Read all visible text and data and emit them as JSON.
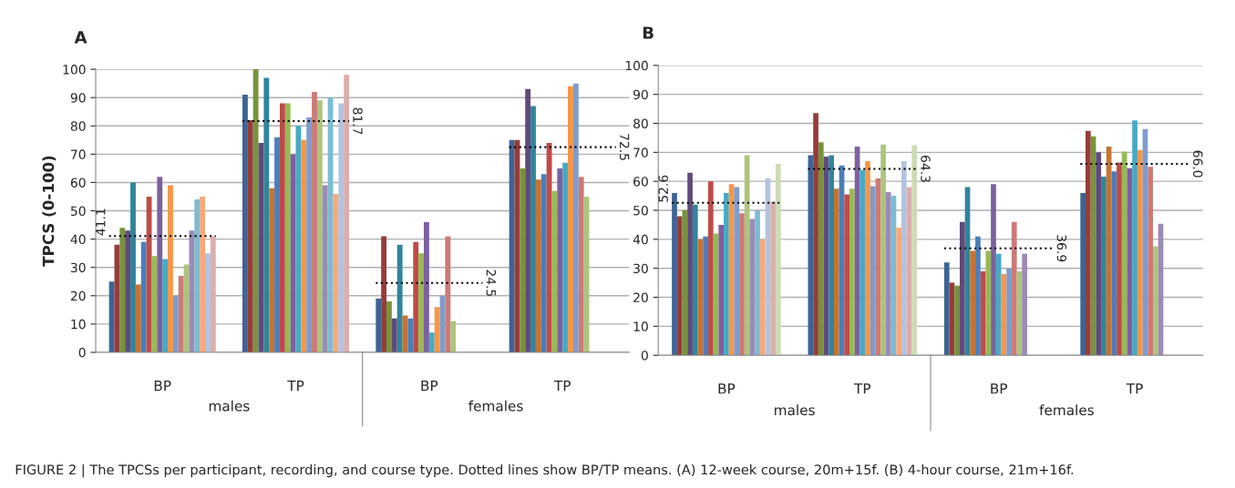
{
  "chart_data": [
    {
      "type": "bar",
      "title": "A",
      "ylabel": "TPCS (0-100)",
      "categories": [
        "BP",
        "TP",
        "BP",
        "TP"
      ],
      "ylim": [
        0,
        100
      ],
      "yticks": [
        0,
        10,
        20,
        30,
        40,
        50,
        60,
        70,
        80,
        90,
        100
      ],
      "grid": "y",
      "legend": false,
      "series": [
        {
          "color": "#3c6494",
          "values": [
            25,
            91,
            19,
            75
          ]
        },
        {
          "color": "#963c3a",
          "values": [
            38,
            82,
            41,
            75
          ]
        },
        {
          "color": "#77933c",
          "values": [
            44,
            100,
            18,
            65
          ]
        },
        {
          "color": "#604a7b",
          "values": [
            43,
            74,
            12,
            93
          ]
        },
        {
          "color": "#31849b",
          "values": [
            60,
            97,
            38,
            87
          ]
        },
        {
          "color": "#c57431",
          "values": [
            24,
            58,
            13,
            61
          ]
        },
        {
          "color": "#4a7ebb",
          "values": [
            39,
            76,
            12,
            63
          ]
        },
        {
          "color": "#be4b48",
          "values": [
            55,
            88,
            39,
            74
          ]
        },
        {
          "color": "#98b954",
          "values": [
            34,
            88,
            35,
            57
          ]
        },
        {
          "color": "#7d60a0",
          "values": [
            62,
            70,
            46,
            65
          ]
        },
        {
          "color": "#46aac5",
          "values": [
            33,
            80,
            7,
            67
          ]
        },
        {
          "color": "#f79646",
          "values": [
            59,
            75,
            16,
            94
          ]
        },
        {
          "color": "#7f9ccc",
          "values": [
            20,
            83,
            20,
            95
          ]
        },
        {
          "color": "#cc7a78",
          "values": [
            27,
            92,
            41,
            62
          ]
        },
        {
          "color": "#adc47d",
          "values": [
            31,
            89,
            11,
            55
          ]
        },
        {
          "color": "#9b8bb5",
          "values": [
            43,
            59,
            null,
            null
          ]
        },
        {
          "color": "#7cbcd2",
          "values": [
            54,
            90,
            null,
            null
          ]
        },
        {
          "color": "#f8a97a",
          "values": [
            55,
            56,
            null,
            null
          ]
        },
        {
          "color": "#b3c3df",
          "values": [
            35,
            88,
            null,
            null
          ]
        },
        {
          "color": "#dbaeae",
          "values": [
            41,
            98,
            null,
            null
          ]
        }
      ],
      "ref_lines": [
        {
          "axis": "y",
          "value": 41.1,
          "label": "41.1",
          "line_style": "dotted",
          "color": "#000000"
        },
        {
          "axis": "y",
          "value": 81.7,
          "label": "81.7",
          "line_style": "dotted",
          "color": "#000000"
        },
        {
          "axis": "y",
          "value": 24.5,
          "label": "24.5",
          "line_style": "dotted",
          "color": "#000000"
        },
        {
          "axis": "y",
          "value": 72.5,
          "label": "72.5",
          "line_style": "dotted",
          "color": "#000000"
        }
      ],
      "annotations": [
        "males",
        "females",
        "FIGURE 2 | The TPCSs per participant, recording, and course type. Dotted lines show BP/TP means. (A) 12-week course, 20m+15f. (B) 4-hour course, 21m+16f."
      ]
    },
    {
      "type": "bar",
      "title": "B",
      "categories": [
        "BP",
        "TP",
        "BP",
        "TP"
      ],
      "ylim": [
        0,
        100
      ],
      "yticks": [
        0,
        10,
        20,
        30,
        40,
        50,
        60,
        70,
        80,
        90,
        100
      ],
      "grid": "y",
      "legend": false,
      "series": [
        {
          "color": "#3c6494",
          "values": [
            56,
            69,
            32,
            56
          ]
        },
        {
          "color": "#963c3a",
          "values": [
            48,
            83.5,
            25,
            77.4
          ]
        },
        {
          "color": "#77933c",
          "values": [
            50,
            73.5,
            24,
            75.5
          ]
        },
        {
          "color": "#604a7b",
          "values": [
            63,
            68.5,
            46,
            70
          ]
        },
        {
          "color": "#31849b",
          "values": [
            52,
            69,
            58,
            61.6
          ]
        },
        {
          "color": "#c57431",
          "values": [
            40,
            57.5,
            36,
            72
          ]
        },
        {
          "color": "#4a7ebb",
          "values": [
            41,
            65.5,
            41,
            63.4
          ]
        },
        {
          "color": "#be4b48",
          "values": [
            60,
            55.5,
            29,
            66.5
          ]
        },
        {
          "color": "#98b954",
          "values": [
            42,
            57.5,
            36,
            70.3
          ]
        },
        {
          "color": "#7d60a0",
          "values": [
            45,
            72,
            59,
            64.5
          ]
        },
        {
          "color": "#46aac5",
          "values": [
            56,
            64,
            35,
            81
          ]
        },
        {
          "color": "#f79646",
          "values": [
            59,
            67,
            28,
            70.8
          ]
        },
        {
          "color": "#7f9ccc",
          "values": [
            58,
            58.3,
            30,
            78
          ]
        },
        {
          "color": "#cc7a78",
          "values": [
            49,
            61,
            46,
            65
          ]
        },
        {
          "color": "#adc47d",
          "values": [
            69,
            72.7,
            29,
            37.6
          ]
        },
        {
          "color": "#9b8bb5",
          "values": [
            47,
            56.3,
            35,
            45.4
          ]
        },
        {
          "color": "#7cbcd2",
          "values": [
            50,
            55,
            null,
            null
          ]
        },
        {
          "color": "#f8a97a",
          "values": [
            40,
            44,
            null,
            null
          ]
        },
        {
          "color": "#b3c3df",
          "values": [
            61,
            67,
            null,
            null
          ]
        },
        {
          "color": "#dbaeae",
          "values": [
            53,
            58,
            null,
            null
          ]
        },
        {
          "color": "#cddbb5",
          "values": [
            66,
            72.5,
            null,
            null
          ]
        }
      ],
      "ref_lines": [
        {
          "axis": "y",
          "value": 52.6,
          "label": "52.6",
          "line_style": "dotted",
          "color": "#000000"
        },
        {
          "axis": "y",
          "value": 64.3,
          "label": "64.3",
          "line_style": "dotted",
          "color": "#000000"
        },
        {
          "axis": "y",
          "value": 36.9,
          "label": "36.9",
          "line_style": "dotted",
          "color": "#000000"
        },
        {
          "axis": "y",
          "value": 66.0,
          "label": "66.0",
          "line_style": "dotted",
          "color": "#000000"
        }
      ],
      "annotations": [
        "males",
        "females"
      ]
    }
  ]
}
